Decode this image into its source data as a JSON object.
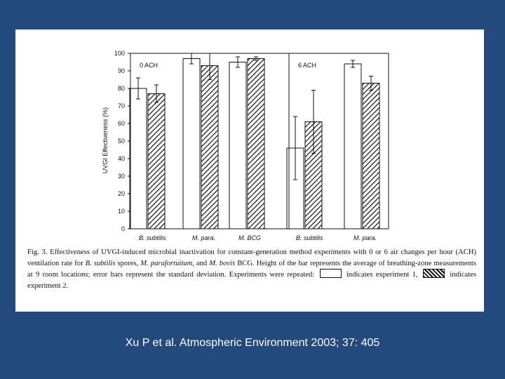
{
  "chart_data": {
    "type": "bar",
    "ylabel": "UVGI Effectiveness (%)",
    "ylim": [
      0,
      100
    ],
    "yticks": [
      0,
      10,
      20,
      30,
      40,
      50,
      60,
      70,
      80,
      90,
      100
    ],
    "groups": [
      {
        "label": "0 ACH",
        "categories": [
          "B. subtilis",
          "M. para.",
          "M. BCG"
        ]
      },
      {
        "label": "6 ACH",
        "categories": [
          "B. subtilis",
          "M. para."
        ]
      }
    ],
    "categories": [
      "B. subtilis",
      "M. para.",
      "M.  BCG",
      "B. subtilis",
      "M. para."
    ],
    "series": [
      {
        "fill": "white",
        "values": [
          80,
          97,
          95,
          46,
          94
        ],
        "error": [
          6,
          3,
          3,
          18,
          2
        ]
      },
      {
        "fill": "hatched",
        "values": [
          77,
          93,
          97,
          61,
          83
        ],
        "error": [
          5,
          8,
          1,
          18,
          4
        ]
      }
    ]
  },
  "caption": {
    "part1": "Fig. 3.  Effectiveness of UVGI-induced microbial inactivation for constant-generation method experiments with 0 or 6 air changes per hour (ACH) ventilation rate for ",
    "sp1": "B. subtilis",
    "part2": " spores, ",
    "sp2": "M. parafortuitum,",
    "part3": " and ",
    "sp3": "M. bovis",
    "part4": " BCG. Height of the bar represents the average of breathing-zone measurements at 9 room locations; error bars represent the standard deviation. Experiments were repeated:",
    "part5": "indicates experiment 1,",
    "part6": "indicates experiment 2."
  },
  "citation": "Xu P et al.  Atmospheric Environment 2003; 37: 405"
}
